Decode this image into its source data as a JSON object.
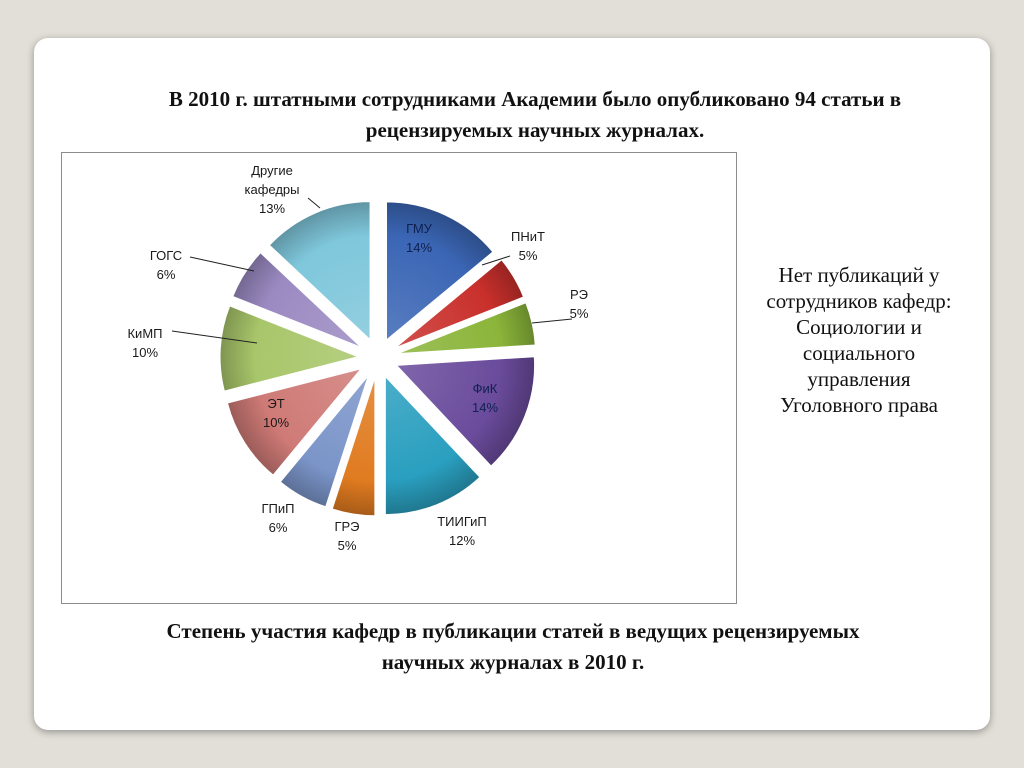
{
  "title": {
    "line1": "В 2010 г. штатными сотрудниками Академии было опубликовано 94 статьи в",
    "line2": "рецензируемых научных журналах."
  },
  "note": {
    "lines": [
      "Нет публикаций у",
      "сотрудников кафедр:",
      "Социологии и",
      "социального",
      "управления",
      "Уголовного права"
    ]
  },
  "caption": {
    "line1": "Степень участия кафедр в публикации статей в ведущих рецензируемых",
    "line2": "научных журналах в 2010 г."
  },
  "chart_data": {
    "type": "pie",
    "exploded": true,
    "title": "",
    "legend": "none",
    "slices": [
      {
        "label": "ГМУ",
        "value": 14,
        "percent_label": "14%",
        "color": "#3b66b5"
      },
      {
        "label": "ПНиТ",
        "value": 5,
        "percent_label": "5%",
        "color": "#c9302c"
      },
      {
        "label": "РЭ",
        "value": 5,
        "percent_label": "5%",
        "color": "#8bb53a"
      },
      {
        "label": "ФиК",
        "value": 14,
        "percent_label": "14%",
        "color": "#6a4b9c"
      },
      {
        "label": "ТИИГиП",
        "value": 12,
        "percent_label": "12%",
        "color": "#2a9fbf"
      },
      {
        "label": "ГРЭ",
        "value": 5,
        "percent_label": "5%",
        "color": "#e07b20"
      },
      {
        "label": "ГПиП",
        "value": 6,
        "percent_label": "6%",
        "color": "#7b95c9"
      },
      {
        "label": "ЭТ",
        "value": 10,
        "percent_label": "10%",
        "color": "#cf7a76"
      },
      {
        "label": "КиМП",
        "value": 10,
        "percent_label": "10%",
        "color": "#a8c66a"
      },
      {
        "label": "ГОГС",
        "value": 6,
        "percent_label": "6%",
        "color": "#9b8ac2"
      },
      {
        "label": "Другие кафедры",
        "value": 13,
        "percent_label": "13%",
        "color": "#7fc7db"
      }
    ]
  }
}
